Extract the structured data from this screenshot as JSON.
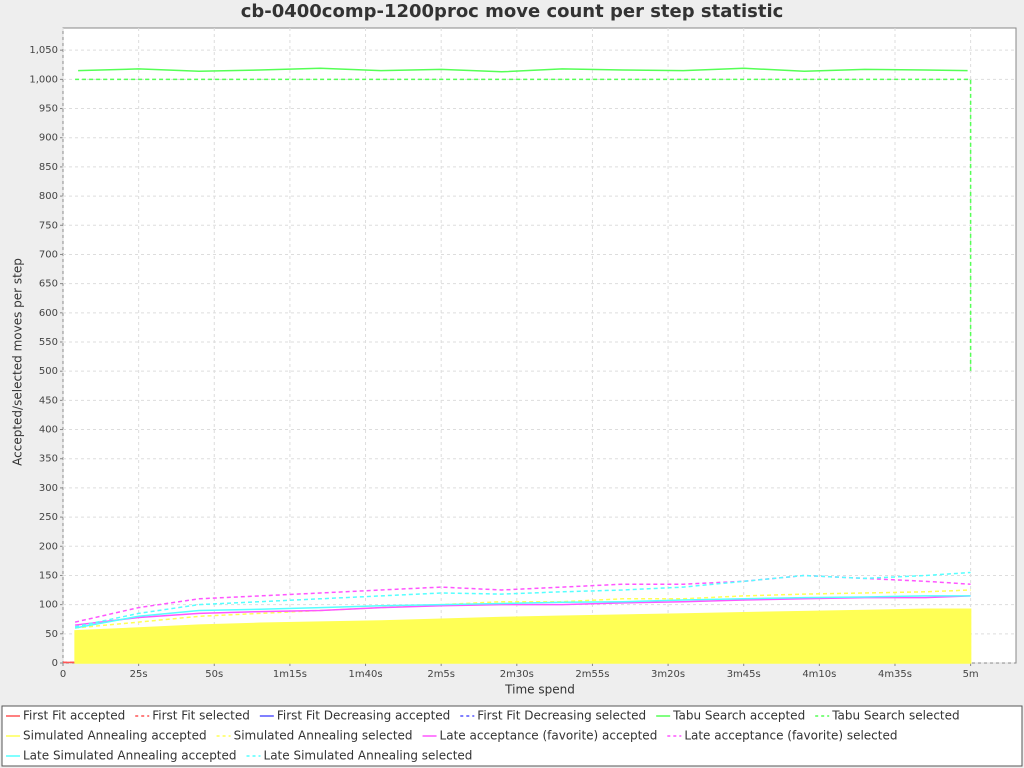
{
  "chart_data": {
    "type": "line",
    "title": "cb-0400comp-1200proc move count per step statistic",
    "x_label": "Time spend",
    "y_label": "Accepted/selected moves per step",
    "xlim": [
      0,
      315
    ],
    "ylim": [
      0,
      1088
    ],
    "xticks": [
      0,
      {
        "value": 25,
        "label": "25s"
      },
      {
        "value": 50,
        "label": "50s"
      },
      {
        "value": 75,
        "label": "1m15s"
      },
      {
        "value": 100,
        "label": "1m40s"
      },
      {
        "value": 125,
        "label": "2m5s"
      },
      {
        "value": 150,
        "label": "2m30s"
      },
      {
        "value": 175,
        "label": "2m55s"
      },
      {
        "value": 200,
        "label": "3m20s"
      },
      {
        "value": 225,
        "label": "3m45s"
      },
      {
        "value": 250,
        "label": "4m10s"
      },
      {
        "value": 275,
        "label": "4m35s"
      },
      {
        "value": 300,
        "label": "5m"
      }
    ],
    "yticks": [
      0,
      50,
      100,
      150,
      200,
      250,
      300,
      350,
      400,
      450,
      500,
      550,
      600,
      650,
      700,
      750,
      800,
      850,
      900,
      950,
      {
        "value": 1000,
        "label": "1,000"
      },
      {
        "value": 1050,
        "label": "1,050"
      }
    ],
    "grid": true,
    "series": [
      {
        "name": "First Fit accepted",
        "color": "#ff5555",
        "dashed": false,
        "x": [
          0,
          4
        ],
        "values": [
          1,
          1
        ]
      },
      {
        "name": "First Fit selected",
        "color": "#ff5555",
        "dashed": true,
        "x": [
          0,
          4
        ],
        "values": [
          1,
          1
        ]
      },
      {
        "name": "First Fit Decreasing accepted",
        "color": "#5555ff",
        "dashed": false,
        "x": [
          4,
          5
        ],
        "values": [
          1,
          1
        ]
      },
      {
        "name": "First Fit Decreasing selected",
        "color": "#5555ff",
        "dashed": true,
        "x": [
          4,
          5
        ],
        "values": [
          1,
          1
        ]
      },
      {
        "name": "Tabu Search accepted",
        "color": "#55ff55",
        "dashed": false,
        "x": [
          5,
          25,
          45,
          65,
          85,
          105,
          125,
          145,
          165,
          185,
          205,
          225,
          245,
          265,
          285,
          299
        ],
        "values": [
          1015,
          1018,
          1014,
          1016,
          1019,
          1015,
          1017,
          1013,
          1018,
          1016,
          1015,
          1019,
          1014,
          1017,
          1016,
          1015
        ]
      },
      {
        "name": "Tabu Search selected",
        "color": "#55ff55",
        "dashed": true,
        "x": [
          4,
          25,
          45,
          65,
          85,
          105,
          125,
          145,
          165,
          185,
          205,
          225,
          245,
          265,
          285,
          300,
          300
        ],
        "values": [
          1000,
          1000,
          1000,
          1000,
          1000,
          1000,
          1000,
          1000,
          1000,
          1000,
          1000,
          1000,
          1000,
          1000,
          1000,
          1000,
          500
        ]
      },
      {
        "name": "Simulated Annealing accepted",
        "color": "#ffff55",
        "dashed": false,
        "area": true,
        "x": [
          4,
          25,
          45,
          65,
          85,
          105,
          125,
          145,
          165,
          185,
          205,
          225,
          245,
          265,
          285,
          300
        ],
        "values": [
          55,
          60,
          65,
          68,
          70,
          72,
          75,
          78,
          80,
          82,
          84,
          86,
          88,
          90,
          92,
          92
        ]
      },
      {
        "name": "Simulated Annealing selected",
        "color": "#ffff55",
        "dashed": true,
        "x": [
          4,
          25,
          45,
          65,
          85,
          105,
          125,
          145,
          165,
          185,
          205,
          225,
          245,
          265,
          285,
          300
        ],
        "values": [
          60,
          70,
          80,
          85,
          90,
          95,
          100,
          105,
          105,
          110,
          110,
          115,
          118,
          120,
          122,
          125
        ]
      },
      {
        "name": "Late acceptance (favorite) accepted",
        "color": "#ff55ff",
        "dashed": false,
        "x": [
          4,
          25,
          45,
          65,
          85,
          105,
          125,
          145,
          165,
          185,
          205,
          225,
          245,
          265,
          285,
          300
        ],
        "values": [
          65,
          78,
          85,
          88,
          90,
          95,
          98,
          100,
          100,
          103,
          105,
          108,
          110,
          112,
          112,
          115
        ]
      },
      {
        "name": "Late acceptance (favorite) selected",
        "color": "#ff55ff",
        "dashed": true,
        "x": [
          4,
          25,
          45,
          65,
          85,
          105,
          125,
          145,
          165,
          185,
          205,
          225,
          245,
          265,
          285,
          300
        ],
        "values": [
          70,
          95,
          110,
          115,
          120,
          125,
          130,
          125,
          130,
          135,
          135,
          140,
          150,
          145,
          140,
          135
        ]
      },
      {
        "name": "Late Simulated Annealing accepted",
        "color": "#55ffff",
        "dashed": false,
        "x": [
          4,
          25,
          45,
          65,
          85,
          105,
          125,
          145,
          165,
          185,
          205,
          225,
          245,
          265,
          285,
          300
        ],
        "values": [
          60,
          80,
          90,
          92,
          95,
          98,
          100,
          102,
          104,
          105,
          108,
          110,
          112,
          113,
          115,
          115
        ]
      },
      {
        "name": "Late Simulated Annealing selected",
        "color": "#55ffff",
        "dashed": true,
        "x": [
          4,
          25,
          45,
          65,
          85,
          105,
          125,
          145,
          165,
          185,
          205,
          225,
          245,
          265,
          285,
          300
        ],
        "values": [
          62,
          85,
          100,
          105,
          110,
          115,
          120,
          118,
          122,
          125,
          130,
          140,
          150,
          145,
          150,
          155
        ]
      }
    ]
  }
}
